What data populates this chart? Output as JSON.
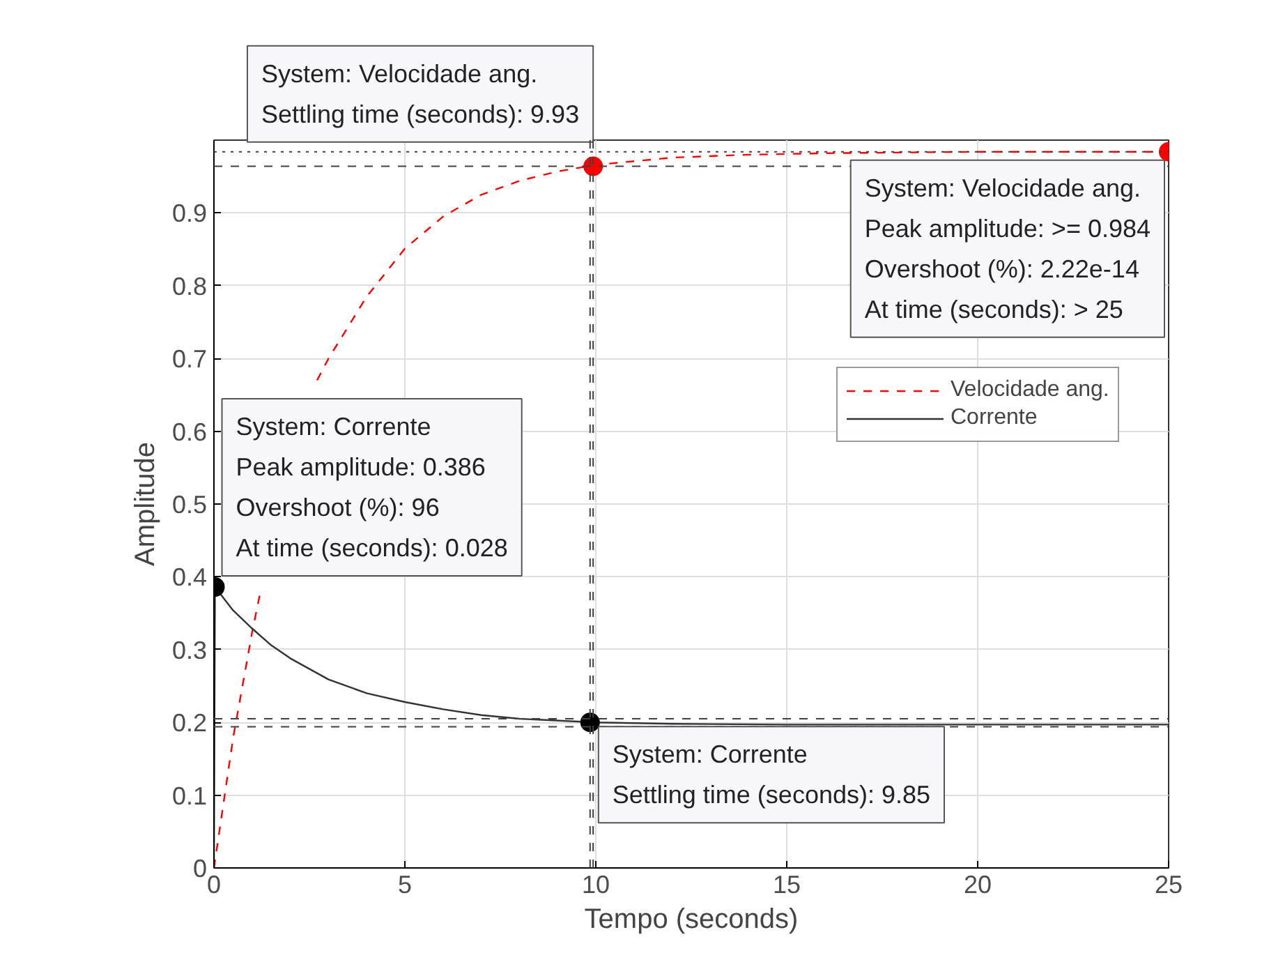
{
  "chart_data": {
    "type": "line",
    "xlabel": "Tempo (seconds)",
    "ylabel": "Amplitude",
    "xlim": [
      0,
      25
    ],
    "ylim": [
      0,
      1
    ],
    "xticks": [
      0,
      5,
      10,
      15,
      20,
      25
    ],
    "yticks": [
      0,
      0.1,
      0.2,
      0.3,
      0.4,
      0.5,
      0.6,
      0.7,
      0.8,
      0.9
    ],
    "grid": true,
    "legend": "top right",
    "series": [
      {
        "name": "Velocidade ang.",
        "color": "#ff0000",
        "line_style": "dashed",
        "x": [
          0,
          0.5,
          1,
          1.2,
          1.5,
          2,
          2.7,
          3,
          4,
          5,
          6,
          7,
          8,
          9,
          10,
          12,
          14,
          16,
          18,
          20,
          25
        ],
        "values": [
          0,
          0.178,
          0.324,
          0.375,
          null,
          null,
          0.67,
          0.7,
          0.785,
          0.851,
          0.895,
          0.925,
          0.944,
          0.957,
          0.966,
          0.976,
          0.98,
          0.982,
          0.983,
          0.984,
          0.984
        ]
      },
      {
        "name": "Corrente",
        "color": "#333333",
        "line_style": "solid",
        "x": [
          0,
          0.028,
          0.5,
          1,
          1.5,
          2,
          3,
          4,
          5,
          6,
          7,
          8,
          10,
          12,
          15,
          25
        ],
        "values": [
          0,
          0.386,
          0.354,
          0.329,
          0.306,
          0.288,
          0.259,
          0.24,
          0.228,
          0.218,
          0.21,
          0.205,
          0.2,
          0.198,
          0.197,
          0.197
        ]
      },
      {
        "type": "scatter",
        "marker": "circle",
        "color": "#ff0000",
        "x": [
          9.93,
          25
        ],
        "values": [
          0.964,
          0.984
        ]
      },
      {
        "type": "scatter",
        "marker": "circle",
        "color": "#000000",
        "x": [
          0.028,
          9.85
        ],
        "values": [
          0.386,
          0.2
        ]
      }
    ],
    "ref_lines": [
      {
        "axis": "y",
        "value": 0.964,
        "color": "#404040",
        "line_style": "dashed"
      },
      {
        "axis": "x",
        "value": 9.93,
        "color": "#404040",
        "line_style": "dashed"
      },
      {
        "axis": "y",
        "value": 0.984,
        "color": "#404040",
        "line_style": "dotted"
      },
      {
        "axis": "x",
        "value": 9.85,
        "color": "#404040",
        "line_style": "dashed"
      },
      {
        "axis": "y",
        "value": 0.205,
        "color": "#404040",
        "line_style": "dashed"
      },
      {
        "axis": "y",
        "value": 0.194,
        "color": "#404040",
        "line_style": "dashed"
      }
    ],
    "annotations": [
      {
        "text": "System: Velocidade ang.\nSettling time (seconds): 9.93",
        "x": 9.93,
        "y": 0.964
      },
      {
        "text": "System: Velocidade ang.\nPeak amplitude: >= 0.984\nOvershoot (%): 2.22e-14\nAt time (seconds): > 25",
        "x": 25,
        "y": 0.984
      },
      {
        "text": "System: Corrente\nPeak amplitude: 0.386\nOvershoot (%): 96\nAt time (seconds): 0.028",
        "x": 0.028,
        "y": 0.386
      },
      {
        "text": "System: Corrente\nSettling time (seconds): 9.85",
        "x": 9.85,
        "y": 0.2
      }
    ]
  }
}
